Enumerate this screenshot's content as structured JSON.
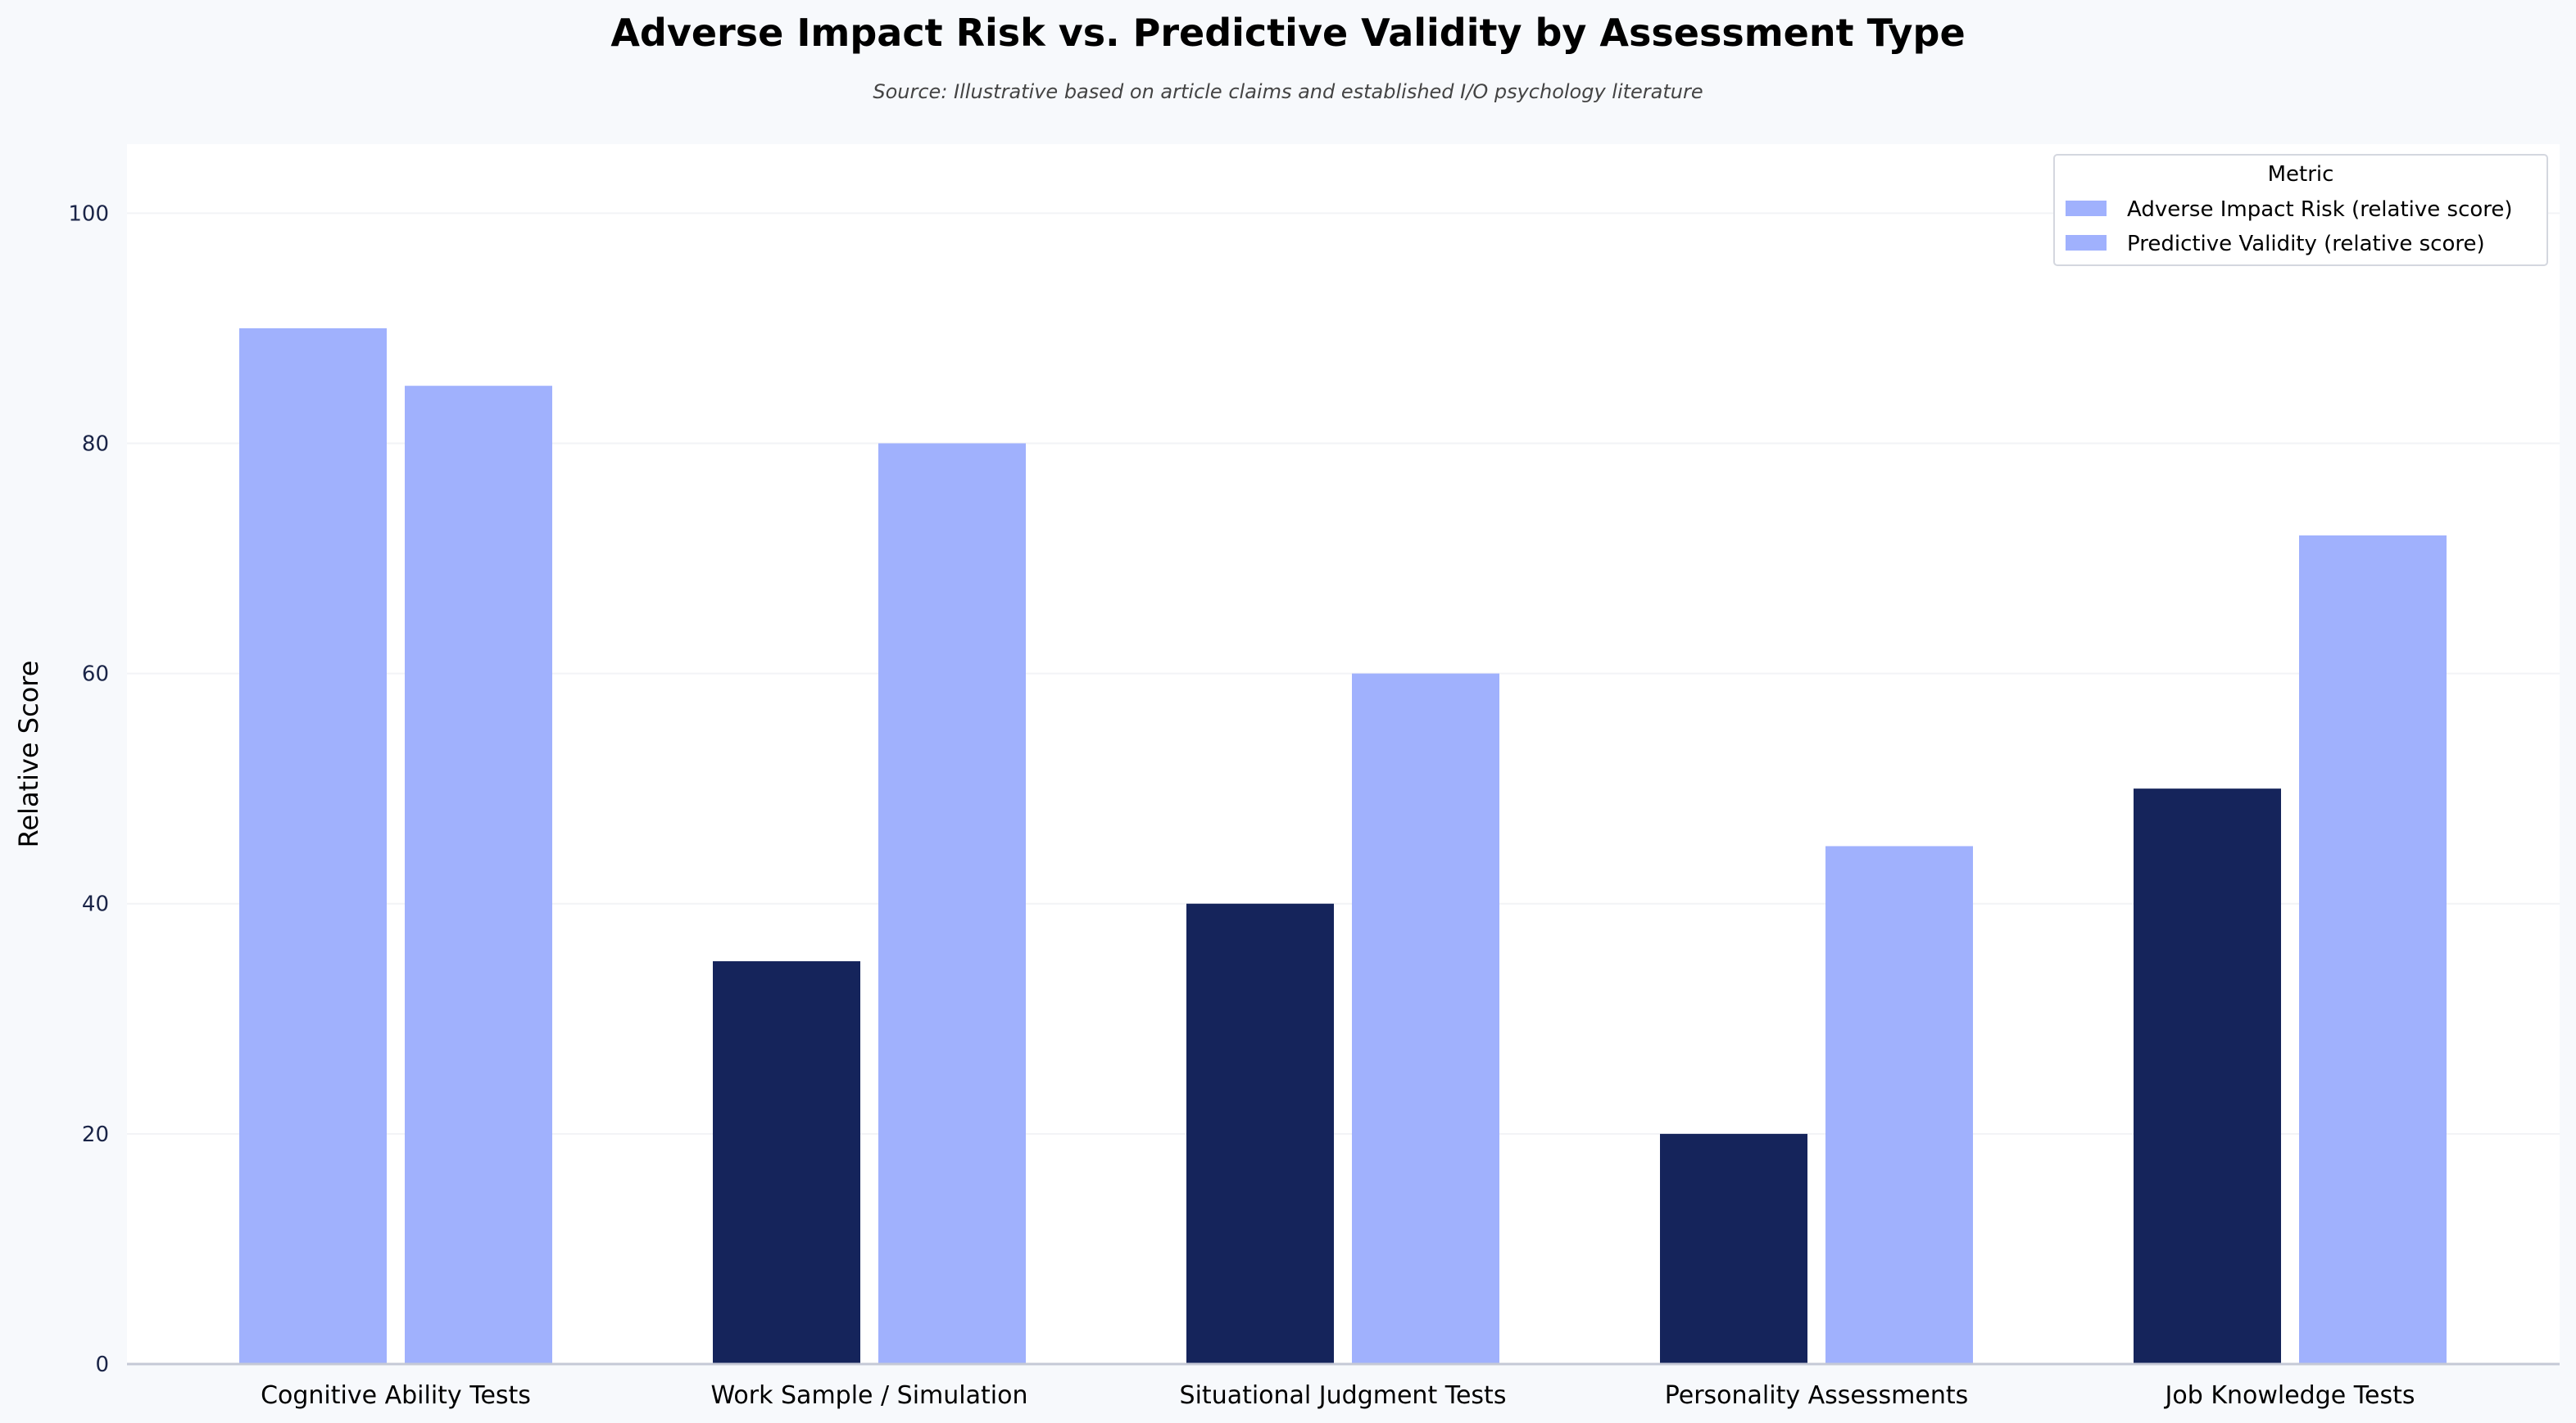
{
  "chart_data": {
    "type": "bar",
    "title": "Adverse Impact Risk vs. Predictive Validity by Assessment Type",
    "subtitle": "Source: Illustrative based on article claims and established I/O psychology literature",
    "xlabel": "",
    "ylabel": "Relative Score",
    "ylim": [
      0,
      106
    ],
    "yticks": [
      0,
      20,
      40,
      60,
      80,
      100
    ],
    "grid": true,
    "legend": {
      "title": "Metric",
      "placement": "top-right"
    },
    "categories": [
      "Cognitive Ability Tests",
      "Work Sample / Simulation",
      "Situational Judgment Tests",
      "Personality Assessments",
      "Job Knowledge Tests"
    ],
    "series": [
      {
        "name": "Adverse Impact Risk (relative score)",
        "values": [
          90,
          35,
          40,
          20,
          50
        ],
        "colors": [
          "#a0b1fd",
          "#15245b",
          "#15245b",
          "#15245b",
          "#15245b"
        ],
        "legend_color": "#a0b1fd"
      },
      {
        "name": "Predictive Validity (relative score)",
        "values": [
          85,
          80,
          60,
          45,
          72
        ],
        "colors": [
          "#a0b1fd",
          "#a0b1fd",
          "#a0b1fd",
          "#a0b1fd",
          "#a0b1fd"
        ],
        "legend_color": "#a0b1fd"
      }
    ]
  }
}
